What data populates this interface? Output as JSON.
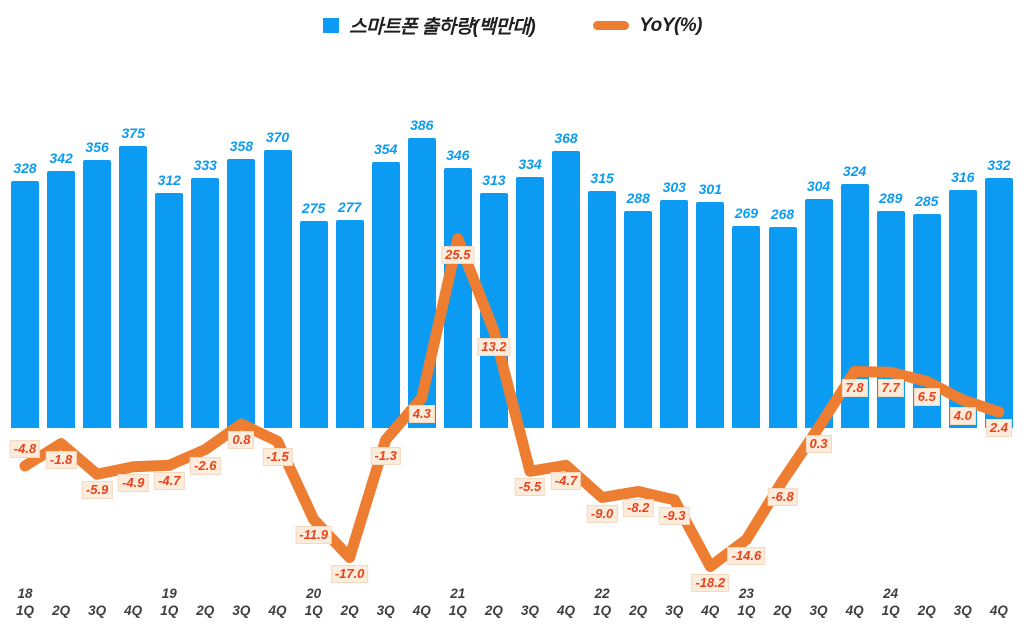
{
  "legend": {
    "series1_label": "스마트폰 출하량(백만대)",
    "series2_label": "YoY(%)"
  },
  "colors": {
    "bar": "#0c9bf2",
    "line": "#ec7d31",
    "yoy_label_text": "#e8431c",
    "yoy_label_bg": "#fcecdc",
    "yoy_label_border": "#f5d8c0",
    "axis_text": "#3f3f3f"
  },
  "chart_data": {
    "type": "bar+line",
    "title": "",
    "legend_position": "top-center",
    "grid": false,
    "axes_hidden": true,
    "bar_series_name": "스마트폰 출하량(백만대)",
    "line_series_name": "YoY(%)",
    "points": [
      {
        "year": "18",
        "quarter": "1Q",
        "shipments": 328,
        "yoy": -4.8
      },
      {
        "year": "",
        "quarter": "2Q",
        "shipments": 342,
        "yoy": -1.8
      },
      {
        "year": "",
        "quarter": "3Q",
        "shipments": 356,
        "yoy": -5.9
      },
      {
        "year": "",
        "quarter": "4Q",
        "shipments": 375,
        "yoy": -4.9
      },
      {
        "year": "19",
        "quarter": "1Q",
        "shipments": 312,
        "yoy": -4.7
      },
      {
        "year": "",
        "quarter": "2Q",
        "shipments": 333,
        "yoy": -2.6
      },
      {
        "year": "",
        "quarter": "3Q",
        "shipments": 358,
        "yoy": 0.8
      },
      {
        "year": "",
        "quarter": "4Q",
        "shipments": 370,
        "yoy": -1.5
      },
      {
        "year": "20",
        "quarter": "1Q",
        "shipments": 275,
        "yoy": -11.9
      },
      {
        "year": "",
        "quarter": "2Q",
        "shipments": 277,
        "yoy": -17.0
      },
      {
        "year": "",
        "quarter": "3Q",
        "shipments": 354,
        "yoy": -1.3
      },
      {
        "year": "",
        "quarter": "4Q",
        "shipments": 386,
        "yoy": 4.3
      },
      {
        "year": "21",
        "quarter": "1Q",
        "shipments": 346,
        "yoy": 25.5
      },
      {
        "year": "",
        "quarter": "2Q",
        "shipments": 313,
        "yoy": 13.2
      },
      {
        "year": "",
        "quarter": "3Q",
        "shipments": 334,
        "yoy": -5.5
      },
      {
        "year": "",
        "quarter": "4Q",
        "shipments": 368,
        "yoy": -4.7
      },
      {
        "year": "22",
        "quarter": "1Q",
        "shipments": 315,
        "yoy": -9.0
      },
      {
        "year": "",
        "quarter": "2Q",
        "shipments": 288,
        "yoy": -8.2
      },
      {
        "year": "",
        "quarter": "3Q",
        "shipments": 303,
        "yoy": -9.3
      },
      {
        "year": "",
        "quarter": "4Q",
        "shipments": 301,
        "yoy": -18.2
      },
      {
        "year": "23",
        "quarter": "1Q",
        "shipments": 269,
        "yoy": -14.6
      },
      {
        "year": "",
        "quarter": "2Q",
        "shipments": 268,
        "yoy": -6.8
      },
      {
        "year": "",
        "quarter": "3Q",
        "shipments": 304,
        "yoy": 0.3
      },
      {
        "year": "",
        "quarter": "4Q",
        "shipments": 324,
        "yoy": 7.8
      },
      {
        "year": "24",
        "quarter": "1Q",
        "shipments": 289,
        "yoy": 7.7
      },
      {
        "year": "",
        "quarter": "2Q",
        "shipments": 285,
        "yoy": 6.5
      },
      {
        "year": "",
        "quarter": "3Q",
        "shipments": 316,
        "yoy": 4.0
      },
      {
        "year": "",
        "quarter": "4Q",
        "shipments": 332,
        "yoy": 2.4
      }
    ]
  }
}
